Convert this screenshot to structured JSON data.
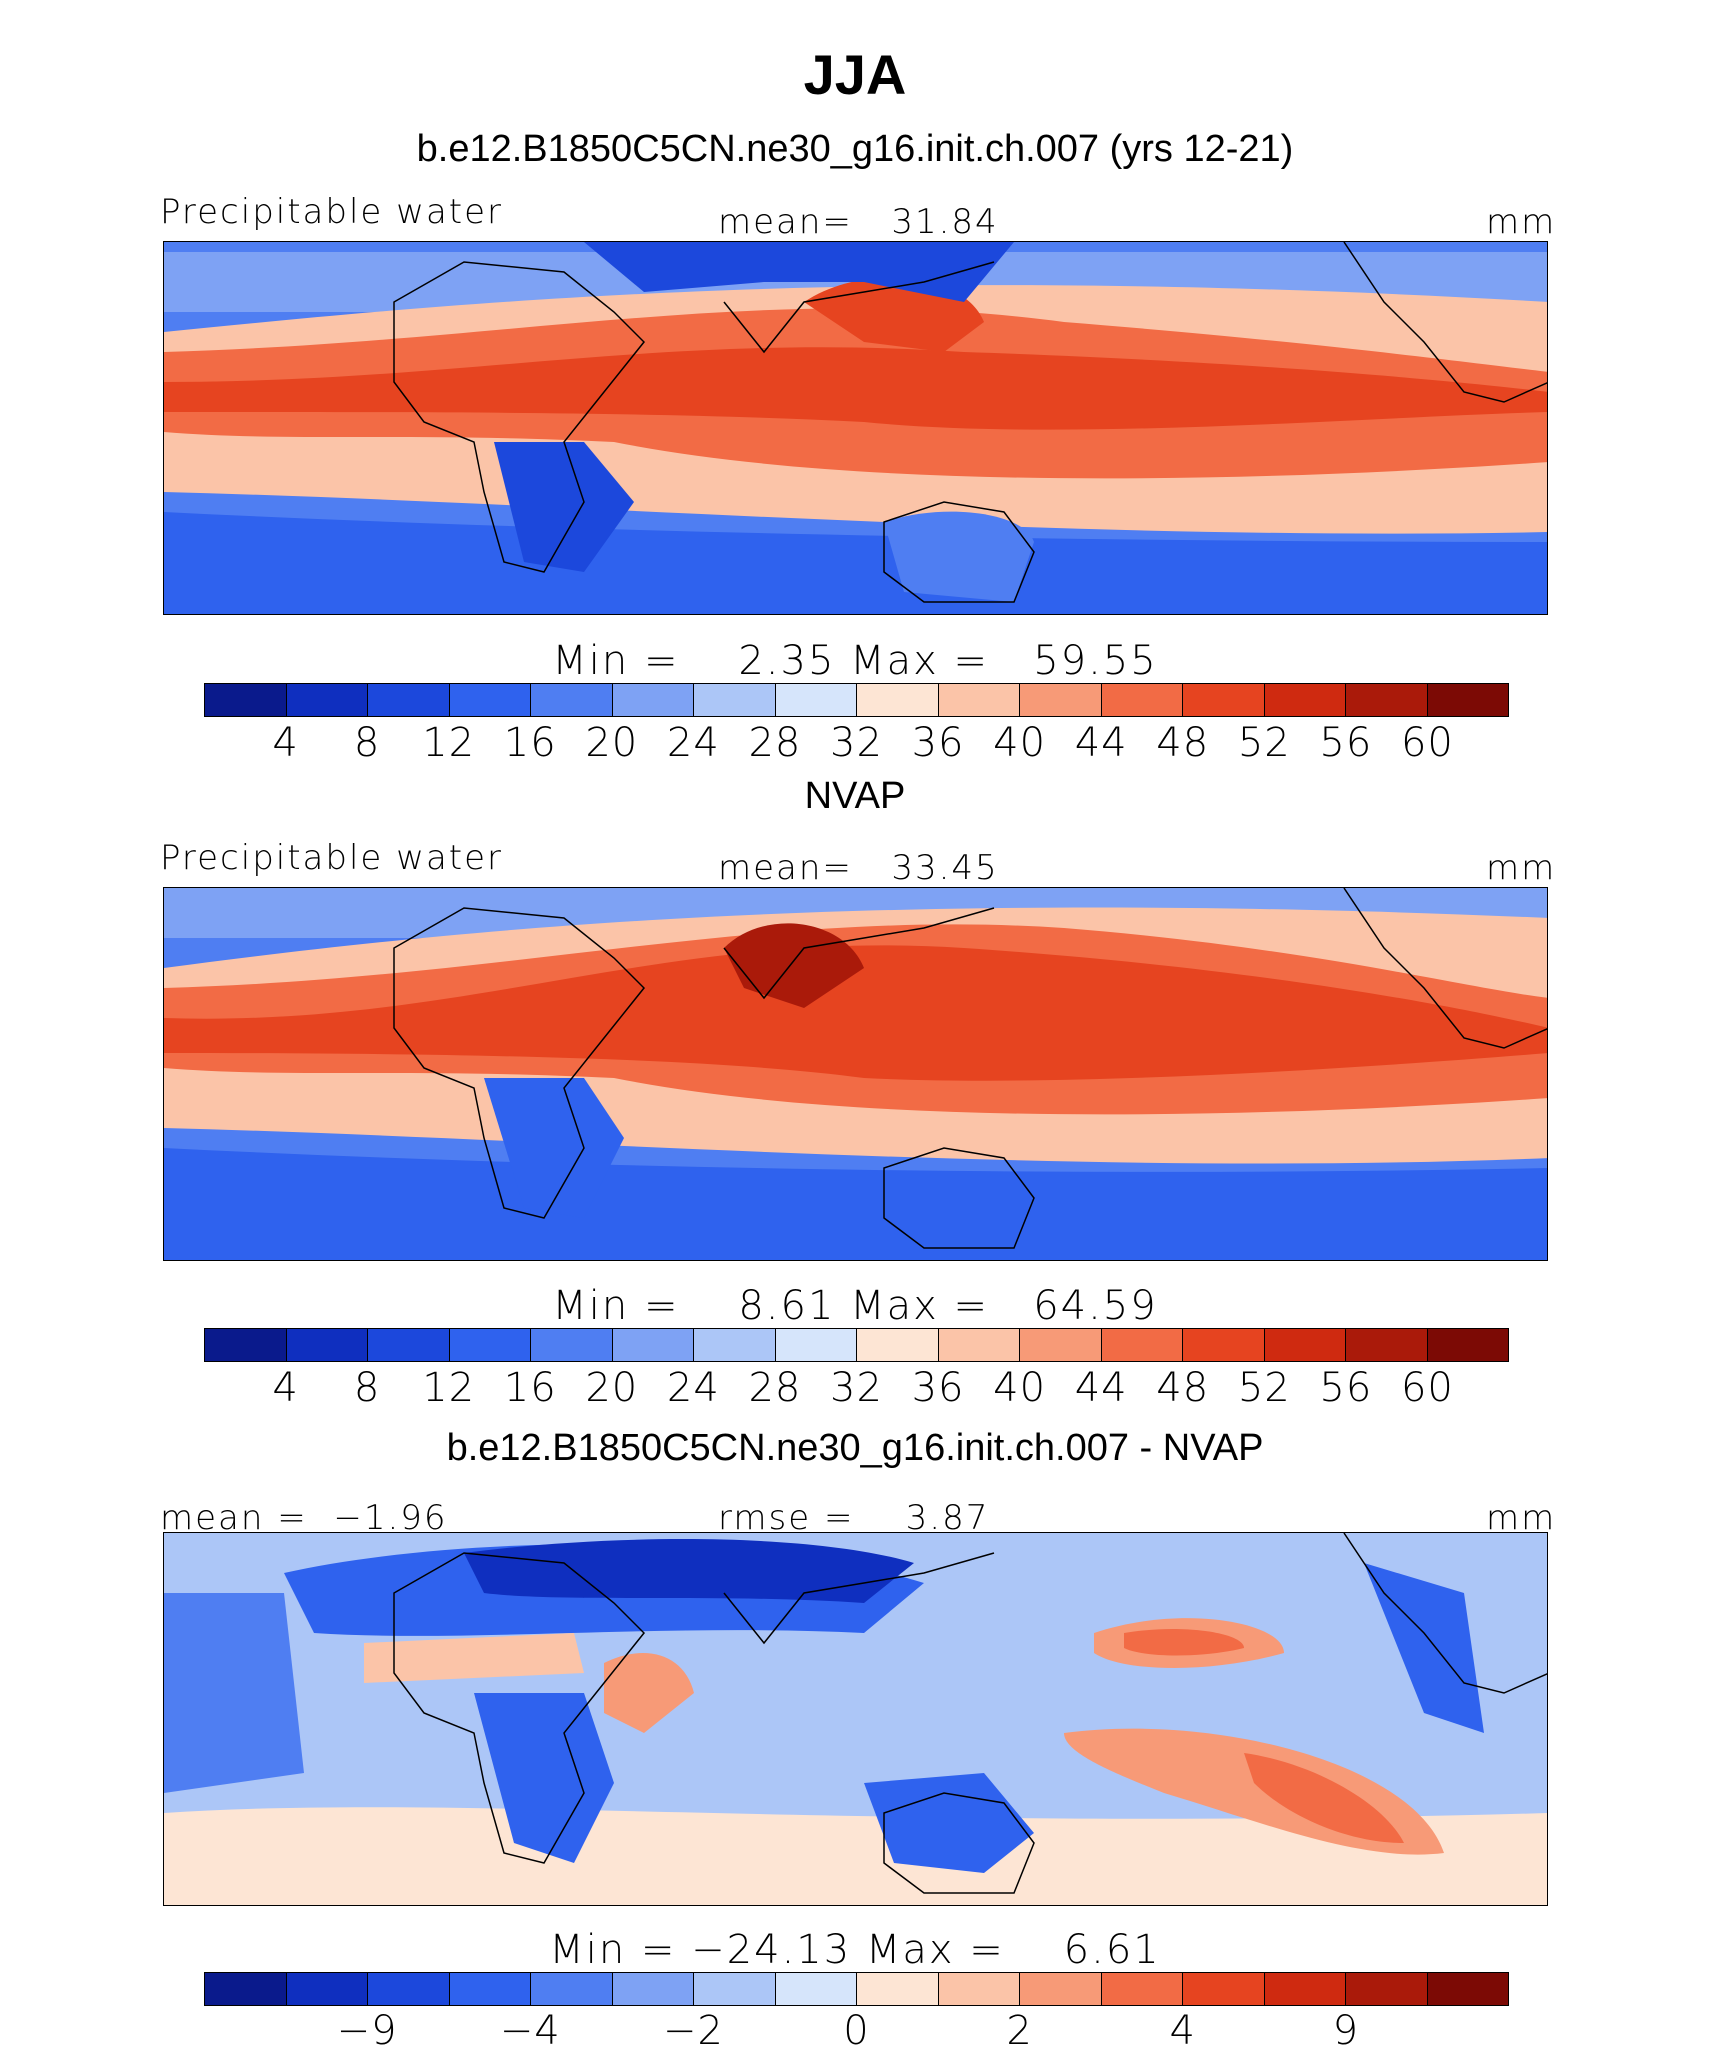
{
  "title": "JJA",
  "panel1": {
    "title": "b.e12.B1850C5CN.ne30_g16.init.ch.007 (yrs 12-21)",
    "left_label": "Precipitable water",
    "center_label": "mean=   31.84",
    "right_label": "mm",
    "minmax": "Min =    2.35 Max =   59.55"
  },
  "panel2": {
    "title": "NVAP",
    "left_label": "Precipitable water",
    "center_label": "mean=   33.45",
    "right_label": "mm",
    "minmax": "Min =    8.61 Max =   64.59"
  },
  "panel3": {
    "title": "b.e12.B1850C5CN.ne30_g16.init.ch.007 - NVAP",
    "left_label": "mean =  −1.96",
    "center_label": "rmse =    3.87",
    "right_label": "mm",
    "minmax": "Min = −24.13 Max =    6.61"
  },
  "colorbar_abs": {
    "colors": [
      "#0a1a8c",
      "#0f2fbf",
      "#1c48dc",
      "#2f62ee",
      "#4f7ef2",
      "#7ea2f4",
      "#acc6f7",
      "#d6e5fb",
      "#fde5d4",
      "#fbc4a8",
      "#f79a77",
      "#f26b45",
      "#e64420",
      "#cf2a10",
      "#aa1a0a",
      "#7c0a05"
    ],
    "ticks": [
      "4",
      "8",
      "12",
      "16",
      "20",
      "24",
      "28",
      "32",
      "36",
      "40",
      "44",
      "48",
      "52",
      "56",
      "60"
    ]
  },
  "colorbar_diff": {
    "colors": [
      "#0a1a8c",
      "#0f2fbf",
      "#1c48dc",
      "#2f62ee",
      "#4f7ef2",
      "#7ea2f4",
      "#acc6f7",
      "#d6e5fb",
      "#fde5d4",
      "#fbc4a8",
      "#f79a77",
      "#f26b45",
      "#e64420",
      "#cf2a10",
      "#aa1a0a",
      "#7c0a05"
    ],
    "ticks": [
      "−9",
      "−4",
      "−2",
      "0",
      "2",
      "4",
      "9"
    ]
  }
}
